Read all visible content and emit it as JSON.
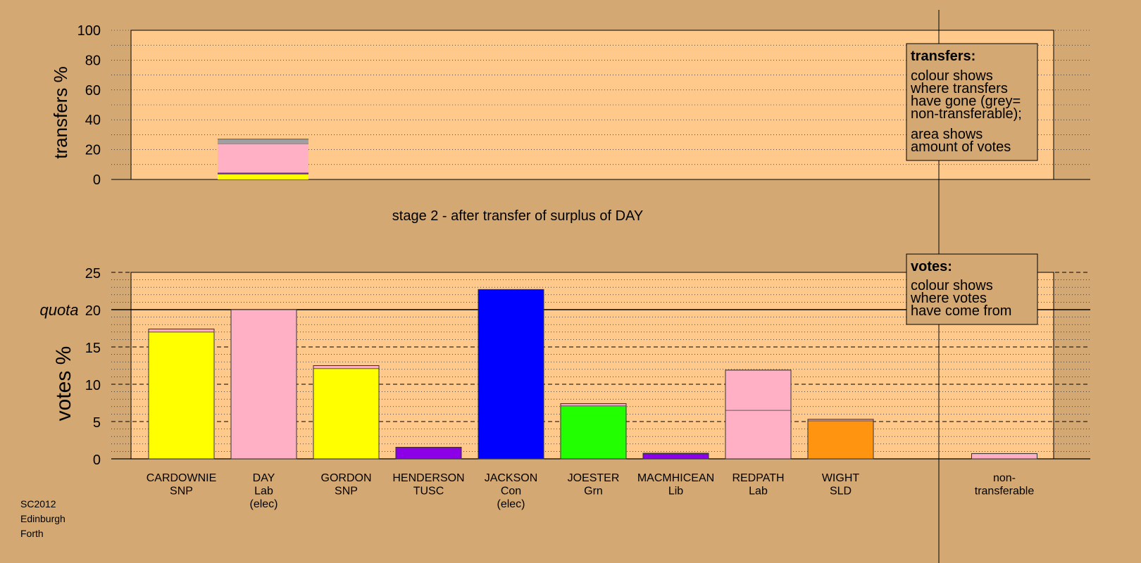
{
  "colors": {
    "page_bg": "#d4a873",
    "plot_bg": "#ffc98c",
    "legend_bg": "#d4a873",
    "snp": "#ffff00",
    "lab": "#ffb0c4",
    "con": "#0000ff",
    "grn": "#22ff00",
    "tusc": "#8b00e6",
    "lib": "#8b00e6",
    "sld": "#ff9410",
    "nontransferable": "#a0a0a0"
  },
  "top_panel": {
    "ylabel": "transfers %",
    "ticks": [
      "0",
      "20",
      "40",
      "60",
      "80",
      "100"
    ],
    "legend": {
      "title": "transfers:",
      "lines1": [
        "colour shows",
        "where transfers",
        "have gone (grey=",
        "non-transferable);"
      ],
      "lines2": [
        "area shows",
        "amount of votes"
      ]
    }
  },
  "stage_label": "stage 2 - after transfer of surplus of DAY",
  "bottom_panel": {
    "ylabel": "votes %",
    "ticks": [
      "0",
      "5",
      "10",
      "15",
      "20",
      "25"
    ],
    "quota_label": "quota",
    "legend": {
      "title": "votes:",
      "lines": [
        "colour shows",
        "where votes",
        "have come from"
      ]
    }
  },
  "footer": [
    "SC2012",
    "Edinburgh",
    "Forth"
  ],
  "chart_data": [
    {
      "type": "bar",
      "panel": "transfers",
      "ylabel": "transfers %",
      "ylim": [
        0,
        100
      ],
      "transfer_from": "DAY",
      "segments": [
        {
          "to": "CARDOWNIE / GORDON (SNP)",
          "color": "snp",
          "value": 3.5
        },
        {
          "to": "JOESTER (Grn)",
          "color": "grn",
          "value": 0.5
        },
        {
          "to": "HENDERSON / MACMHICEAN",
          "color": "tusc",
          "value": 0.5
        },
        {
          "to": "REDPATH (Lab)",
          "color": "lab",
          "value": 19.5
        },
        {
          "to": "non-transferable",
          "color": "nontransferable",
          "value": 3.0
        }
      ]
    },
    {
      "type": "bar",
      "panel": "votes",
      "ylabel": "votes %",
      "ylim": [
        0,
        25
      ],
      "quota": 20,
      "candidates": [
        {
          "name": "CARDOWNIE",
          "party": "SNP",
          "status": "",
          "segments": [
            {
              "color": "snp",
              "value": 17.0
            },
            {
              "color": "lab",
              "value": 0.4
            }
          ]
        },
        {
          "name": "DAY",
          "party": "Lab",
          "status": "(elec)",
          "segments": [
            {
              "color": "lab",
              "value": 20.0
            }
          ]
        },
        {
          "name": "GORDON",
          "party": "SNP",
          "status": "",
          "segments": [
            {
              "color": "snp",
              "value": 12.1
            },
            {
              "color": "lab",
              "value": 0.4
            }
          ]
        },
        {
          "name": "HENDERSON",
          "party": "TUSC",
          "status": "",
          "segments": [
            {
              "color": "tusc",
              "value": 1.5
            },
            {
              "color": "lab",
              "value": 0.05
            }
          ]
        },
        {
          "name": "JACKSON",
          "party": "Con",
          "status": "(elec)",
          "segments": [
            {
              "color": "con",
              "value": 22.7
            }
          ]
        },
        {
          "name": "JOESTER",
          "party": "Grn",
          "status": "",
          "segments": [
            {
              "color": "grn",
              "value": 7.1
            },
            {
              "color": "lab",
              "value": 0.3
            }
          ]
        },
        {
          "name": "MACMHICEAN",
          "party": "Lib",
          "status": "",
          "segments": [
            {
              "color": "lib",
              "value": 0.7
            },
            {
              "color": "lab",
              "value": 0.05
            }
          ]
        },
        {
          "name": "REDPATH",
          "party": "Lab",
          "status": "",
          "segments": [
            {
              "color": "lab",
              "value": 6.5
            },
            {
              "color": "lab",
              "value": 5.4
            }
          ]
        },
        {
          "name": "WIGHT",
          "party": "SLD",
          "status": "",
          "segments": [
            {
              "color": "sld",
              "value": 5.1
            },
            {
              "color": "lab",
              "value": 0.2
            }
          ]
        }
      ],
      "nontransferable": {
        "label": [
          "non-",
          "transferable"
        ],
        "segments": [
          {
            "color": "lab",
            "value": 0.7
          }
        ]
      }
    }
  ]
}
